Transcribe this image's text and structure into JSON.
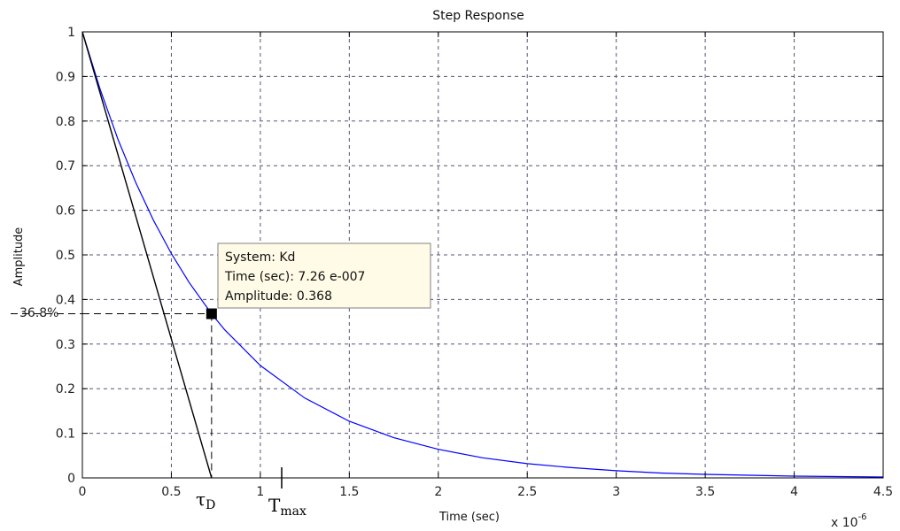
{
  "chart_data": {
    "type": "line",
    "title": "Step Response",
    "xlabel": "Time (sec)",
    "ylabel": "Amplitude",
    "x_multiplier": "x 10",
    "x_multiplier_exp": "-6",
    "xlim": [
      0,
      4.5
    ],
    "ylim": [
      0,
      1
    ],
    "grid": true,
    "x_ticks": [
      "0",
      "0.5",
      "1",
      "1.5",
      "2",
      "2.5",
      "3",
      "3.5",
      "4",
      "4.5"
    ],
    "y_ticks": [
      "0",
      "0.1",
      "0.2",
      "0.3",
      "0.4",
      "0.5",
      "0.6",
      "0.7",
      "0.8",
      "0.9",
      "1"
    ],
    "series": [
      {
        "color": "#0000ff",
        "x": [
          0,
          0.1,
          0.2,
          0.3,
          0.4,
          0.5,
          0.6,
          0.726,
          0.8,
          1.0,
          1.25,
          1.5,
          1.75,
          2.0,
          2.25,
          2.5,
          2.75,
          3.0,
          3.25,
          3.5,
          3.75,
          4.0,
          4.25,
          4.5
        ],
        "y": [
          1.0,
          0.871,
          0.759,
          0.662,
          0.577,
          0.503,
          0.438,
          0.368,
          0.332,
          0.252,
          0.179,
          0.127,
          0.09,
          0.064,
          0.045,
          0.032,
          0.023,
          0.016,
          0.011,
          0.008,
          0.006,
          0.004,
          0.003,
          0.002
        ]
      }
    ],
    "tangent_line": {
      "color": "#000000",
      "x": [
        0,
        0.726
      ],
      "y": [
        1,
        0
      ]
    },
    "data_tip": {
      "x": 0.726,
      "y": 0.368,
      "lines": [
        "System: Kd",
        "Time (sec): 7.26 e-007",
        "Amplitude: 0.368"
      ]
    },
    "annotations": {
      "y_marker_label": "36.8%",
      "tau_symbol": "τ",
      "tau_subscript": "D",
      "tmax_main": "T",
      "tmax_subscript": "max",
      "tmax_x": 1.12
    }
  },
  "colors": {
    "axes": "#000000",
    "grid": "#555577",
    "datatip_fill": "#fffbe6",
    "datatip_border": "#808080"
  }
}
